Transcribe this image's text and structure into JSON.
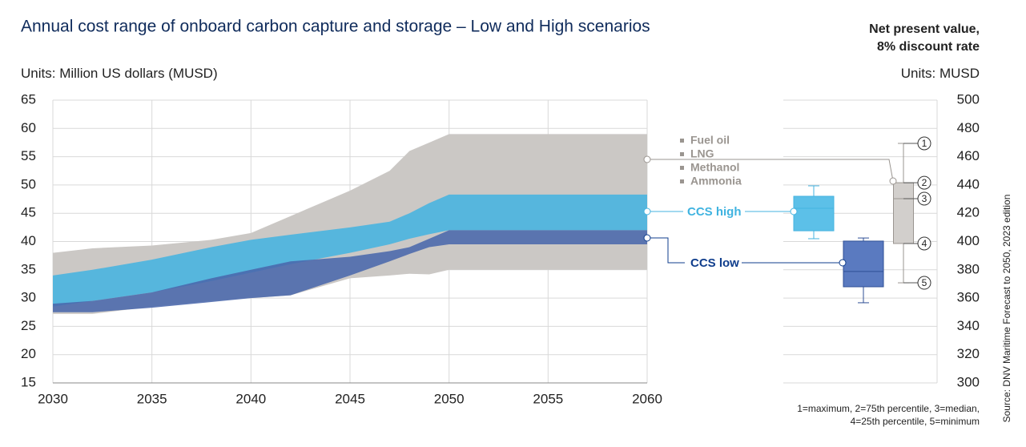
{
  "chart_data": {
    "type": "range",
    "title": "Annual cost range of onboard carbon capture and storage – Low and High scenarios",
    "units_label": "Units:",
    "units": "Million US dollars (MUSD)",
    "x": [
      2030,
      2032,
      2035,
      2038,
      2040,
      2042,
      2045,
      2047,
      2048,
      2049,
      2050,
      2060
    ],
    "xlim": [
      2030,
      2060
    ],
    "xticks": [
      2030,
      2035,
      2040,
      2045,
      2050,
      2055,
      2060
    ],
    "ylim": [
      15,
      65
    ],
    "yticks": [
      15,
      20,
      25,
      30,
      35,
      40,
      45,
      50,
      55,
      60,
      65
    ],
    "grid": true,
    "bands": [
      {
        "labels": [
          "Fuel oil",
          "LNG",
          "Methanol",
          "Ammonia"
        ],
        "color": "#cbc8c5",
        "upper": [
          38,
          38.8,
          39.3,
          40.3,
          41.5,
          44.5,
          49,
          52.5,
          56,
          57.5,
          59,
          59
        ],
        "lower": [
          27.2,
          27.2,
          28.5,
          29.5,
          30,
          30.5,
          33.5,
          34,
          34.3,
          34.2,
          35,
          35
        ]
      },
      {
        "name": "CCS high",
        "color": "#45b3e0",
        "upper": [
          34,
          35,
          36.8,
          39,
          40.3,
          41.2,
          42.5,
          43.5,
          45,
          46.8,
          48.3,
          48.3
        ],
        "lower": [
          28.5,
          29.5,
          31,
          33,
          34.5,
          36,
          38,
          39.5,
          40.5,
          41.3,
          42,
          42
        ]
      },
      {
        "name": "CCS low",
        "color": "#4a68ac",
        "upper": [
          29,
          29.5,
          31,
          33.5,
          35,
          36.5,
          37.3,
          38.3,
          39,
          40.5,
          42,
          42
        ],
        "lower": [
          27.5,
          27.5,
          28.3,
          29.3,
          30,
          30.5,
          34,
          36.5,
          37.8,
          39,
          39.5,
          39.5
        ]
      }
    ],
    "box_title": [
      "Net present value,",
      "8% discount rate"
    ],
    "box_units_label": "Units:",
    "box_units": "MUSD",
    "y2lim": [
      300,
      500
    ],
    "y2ticks": [
      300,
      320,
      340,
      360,
      380,
      400,
      420,
      440,
      460,
      480,
      500
    ],
    "boxes": [
      {
        "color": "#5cc0e8",
        "min": 402,
        "q1": 407.6,
        "median": 423.5,
        "q3": 432,
        "max": 439.4
      },
      {
        "color": "#5a7ac0",
        "min": 356.7,
        "q1": 368,
        "median": 378.8,
        "q3": 400.3,
        "max": 402.5
      },
      {
        "color": "#d2cfcc",
        "min": 370.8,
        "q1": 398.6,
        "median": 430.3,
        "q3": 441.6,
        "max": 469.4
      }
    ],
    "box_markers": [
      "1",
      "2",
      "3",
      "4",
      "5"
    ],
    "footnote": [
      "1=maximum, 2=75th percentile, 3=median,",
      "4=25th percentile, 5=minimum"
    ],
    "source": "Source: DNV Maritime Forecast to 2050, 2023 edition"
  }
}
